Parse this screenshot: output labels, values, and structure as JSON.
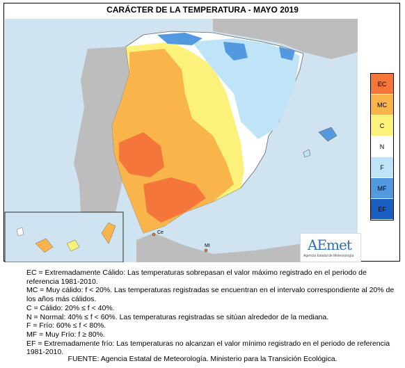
{
  "title": "CARÁCTER DE LA TEMPERATURA - MAYO 2019",
  "legend": [
    {
      "code": "EC",
      "color": "#f4763a"
    },
    {
      "code": "MC",
      "color": "#f9b54c"
    },
    {
      "code": "C",
      "color": "#fcf27b"
    },
    {
      "code": "N",
      "color": "#ffffff"
    },
    {
      "code": "F",
      "color": "#bfe4f7"
    },
    {
      "code": "MF",
      "color": "#5399e0"
    },
    {
      "code": "EF",
      "color": "#1a5fbf"
    }
  ],
  "map_labels": {
    "ceuta": "Ce",
    "melilla": "MI"
  },
  "logo": {
    "text": "AEmet",
    "subtitle": "Agencia Estatal de Meteorología"
  },
  "notes": [
    "EC = Extremadamente Cálido: Las temperaturas sobrepasan el valor máximo registrado en el periodo de referencia 1981-2010.",
    "MC = Muy cálido: f < 20%. Las temperaturas registradas se encuentran en el intervalo correspondiente al 20% de los años más cálidos.",
    "C = Cálido: 20% ≤ f < 40%.",
    "N = Normal: 40% ≤ f < 60%. Las temperaturas registradas se sitúan alrededor de la mediana.",
    "F = Frío: 60% ≤ f < 80%.",
    "MF = Muy Frío: f ≥ 80%.",
    "EF = Extremadamente frío: Las temperaturas no alcanzan el valor mínimo registrado en el periodo de referencia 1981-2010."
  ],
  "source": "FUENTE: Agencia Estatal de Meteorología. Ministerio para la Transición Ecológica.",
  "colors": {
    "sea": "#cfe3f1",
    "land_outside": "#bdbdbd",
    "border": "#666666"
  }
}
